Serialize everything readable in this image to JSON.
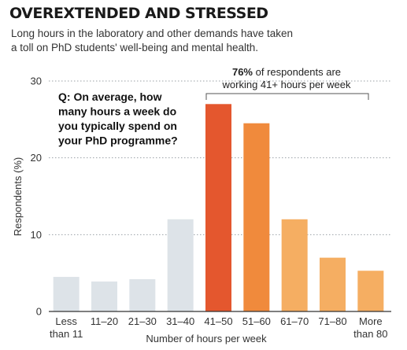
{
  "header": {
    "title": "OVEREXTENDED AND STRESSED",
    "subtitle_lines": [
      "Long hours in the laboratory and other demands have taken",
      "a toll on PhD students' well-being and mental health."
    ]
  },
  "chart_data": {
    "type": "bar",
    "title": "OVEREXTENDED AND STRESSED",
    "xlabel": "Number of hours per week",
    "ylabel": "Respondents (%)",
    "ylim": [
      0,
      30
    ],
    "yticks": [
      "0",
      "10",
      "20",
      "30"
    ],
    "grid": true,
    "categories": [
      "Less than 11",
      "11–20",
      "21–30",
      "31–40",
      "41–50",
      "51–60",
      "61–70",
      "71–80",
      "More than 80"
    ],
    "category_lines": [
      [
        "Less",
        "than 11"
      ],
      [
        "11–20"
      ],
      [
        "21–30"
      ],
      [
        "31–40"
      ],
      [
        "41–50"
      ],
      [
        "51–60"
      ],
      [
        "61–70"
      ],
      [
        "71–80"
      ],
      [
        "More",
        "than 80"
      ]
    ],
    "values": [
      4.5,
      3.9,
      4.2,
      12.0,
      27.0,
      24.5,
      12.0,
      7.0,
      5.3
    ],
    "colors": [
      "#dde3e8",
      "#dde3e8",
      "#dde3e8",
      "#dde3e8",
      "#e4572e",
      "#f08a3c",
      "#f5ae62",
      "#f5ae62",
      "#f5ae62"
    ],
    "question_lines": [
      "Q: On average, how",
      "many hours a week do",
      "you typically spend on",
      "your PhD programme?"
    ],
    "callout": {
      "bold": "76%",
      "line1_rest": " of respondents are",
      "line2": "working 41+ hours per week"
    }
  }
}
